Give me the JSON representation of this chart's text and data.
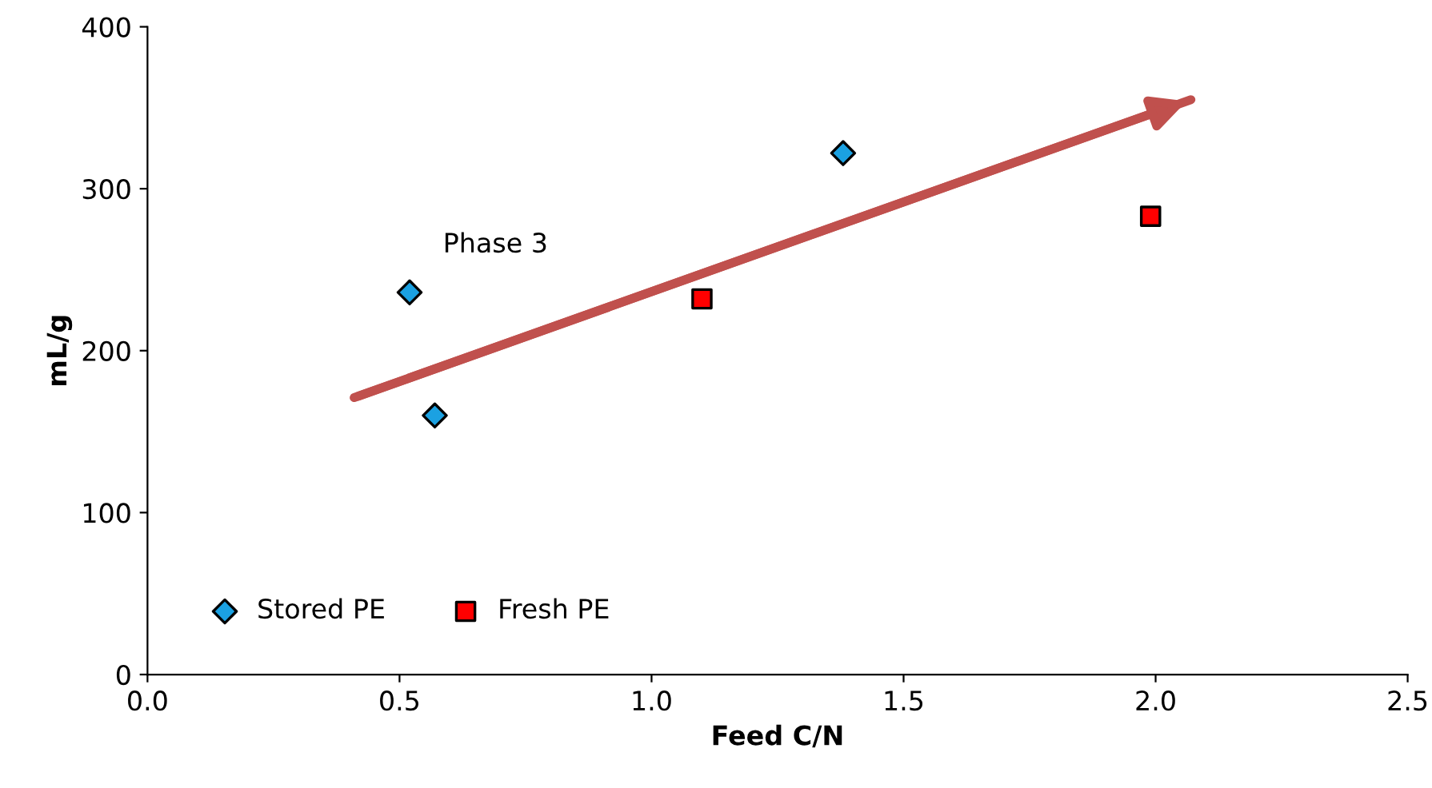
{
  "chart_data": {
    "type": "scatter",
    "xlabel": "Feed C/N",
    "ylabel": "mL/g",
    "xlim": [
      0,
      2.5
    ],
    "xticks": [
      {
        "value": 0,
        "label": "0.0"
      },
      0.5,
      {
        "value": 1,
        "label": "1.0"
      },
      1.5,
      {
        "value": 2,
        "label": "2.0"
      },
      2.5
    ],
    "ylim": [
      0,
      400
    ],
    "yticks": [
      0,
      100,
      200,
      300,
      400
    ],
    "grid": false,
    "legend": "bottom left",
    "series": [
      {
        "name": "Stored PE",
        "color": "#1ba1e2",
        "marker": "diamond",
        "x": [
          0.52,
          0.57,
          1.38
        ],
        "values": [
          236,
          160,
          322
        ]
      },
      {
        "name": "Fresh PE",
        "color": "#ff0000",
        "marker": "square",
        "x": [
          1.1,
          1.99
        ],
        "values": [
          232,
          283
        ]
      },
      {
        "type": "line",
        "color": "#c0504d",
        "marker": "none",
        "x": [
          0.41,
          2.07
        ],
        "values": [
          171,
          355
        ]
      }
    ],
    "annotations": [
      {
        "text": "Phase 3",
        "x": 0.52,
        "y": 236
      }
    ]
  }
}
